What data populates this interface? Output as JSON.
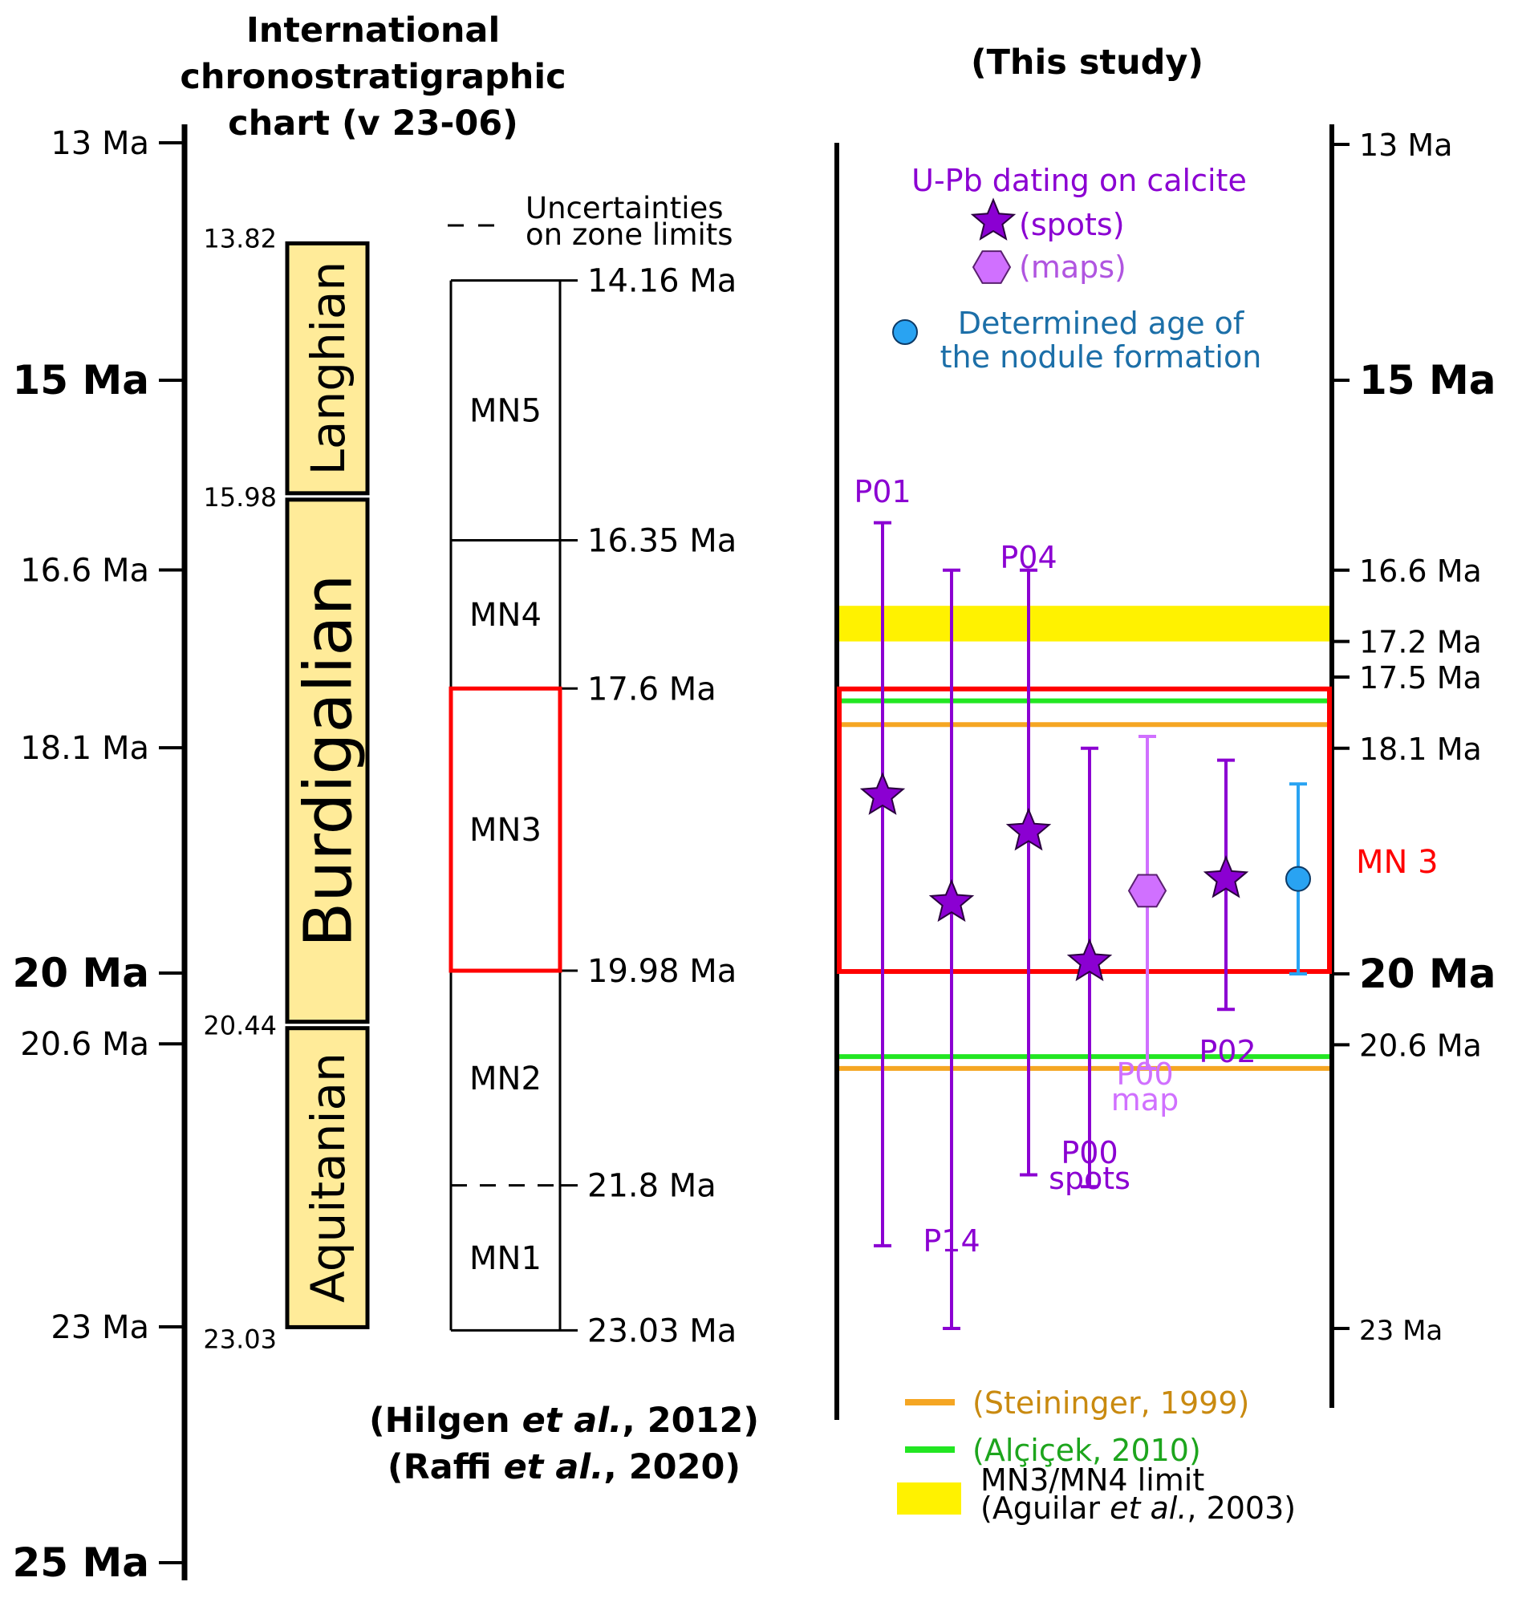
{
  "left_header": {
    "line1": "International",
    "line2": "chronostratigraphic",
    "line3": "chart (v 23-06)"
  },
  "right_header": "(This study)",
  "left_axis_ticks": [
    {
      "label": "13 Ma",
      "value": 13,
      "major": false
    },
    {
      "label": "15 Ma",
      "value": 15,
      "major": true
    },
    {
      "label": "16.6 Ma",
      "value": 16.6,
      "major": false
    },
    {
      "label": "18.1 Ma",
      "value": 18.1,
      "major": false
    },
    {
      "label": "20 Ma",
      "value": 20,
      "major": true
    },
    {
      "label": "20.6 Ma",
      "value": 20.6,
      "major": false
    },
    {
      "label": "23 Ma",
      "value": 23,
      "major": false
    },
    {
      "label": "25 Ma",
      "value": 25,
      "major": true
    }
  ],
  "right_axis_ticks": [
    {
      "label": "13 Ma",
      "value": 13,
      "major": false
    },
    {
      "label": "15 Ma",
      "value": 15,
      "major": true
    },
    {
      "label": "16.6 Ma",
      "value": 16.6,
      "major": false
    },
    {
      "label": "17.2 Ma",
      "value": 17.2,
      "major": false
    },
    {
      "label": "17.5 Ma",
      "value": 17.5,
      "major": false
    },
    {
      "label": "18.1 Ma",
      "value": 18.1,
      "major": false
    },
    {
      "label": "20 Ma",
      "value": 20,
      "major": true
    },
    {
      "label": "20.6 Ma",
      "value": 20.6,
      "major": false
    },
    {
      "label": "23 Ma",
      "value": 23,
      "major": false
    }
  ],
  "stages": [
    {
      "name": "Langhian",
      "top": 13.82,
      "bottom": 15.98,
      "top_label": "13.82",
      "bottom_label": "15.98"
    },
    {
      "name": "Burdigalian",
      "top": 15.98,
      "bottom": 20.44,
      "top_label": "15.98",
      "bottom_label": "20.44"
    },
    {
      "name": "Aquitanian",
      "top": 20.44,
      "bottom": 23.03,
      "top_label": "20.44",
      "bottom_label": "23.03"
    }
  ],
  "uncertainty_legend": {
    "line1": "Uncertainties",
    "line2": "on zone limits"
  },
  "mn_zones": [
    {
      "name": "MN5",
      "top": 14.16,
      "bottom": 16.35
    },
    {
      "name": "MN4",
      "top": 16.35,
      "bottom": 17.6
    },
    {
      "name": "MN3",
      "top": 17.6,
      "bottom": 19.98
    },
    {
      "name": "MN2",
      "top": 19.98,
      "bottom": 21.8
    },
    {
      "name": "MN1",
      "top": 21.8,
      "bottom": 23.03
    }
  ],
  "mn_limits": [
    {
      "label": "14.16 Ma",
      "value": 14.16,
      "dashed": false
    },
    {
      "label": "16.35 Ma",
      "value": 16.35,
      "dashed": false
    },
    {
      "label": "17.6 Ma",
      "value": 17.6,
      "dashed": true
    },
    {
      "label": "19.98 Ma",
      "value": 19.98,
      "dashed": true
    },
    {
      "label": "21.8 Ma",
      "value": 21.8,
      "dashed": true
    },
    {
      "label": "23.03 Ma",
      "value": 23.03,
      "dashed": false
    }
  ],
  "references": {
    "hilgen_pre": "(Hilgen ",
    "hilgen_etal": "et al.",
    "hilgen_post": ", 2012)",
    "raffi_pre": "(Raffi ",
    "raffi_etal": "et al.",
    "raffi_post": ", 2020)"
  },
  "upb_legend": {
    "title": "U-Pb dating on calcite",
    "spots": "(spots)",
    "maps": "(maps)",
    "nodule_line1": "Determined age of",
    "nodule_line2": "the nodule formation"
  },
  "bottom_legend": {
    "steininger": "(Steininger, 1999)",
    "alcicek": "(Alçiçek, 2010)",
    "aguilar_line1": "MN3/MN4 limit",
    "aguilar_pre": "(Aguilar ",
    "aguilar_etal": "et al.",
    "aguilar_post": ", 2003)"
  },
  "mn3_box_label": "MN 3",
  "colors": {
    "spots": "#8B00D2",
    "maps": "#D070FF",
    "nodule": "#29A3F2",
    "nodule_text": "#1C6FA8",
    "steininger": "#F5A623",
    "steininger_text": "#C98A10",
    "alcicek": "#22E622",
    "alcicek_text": "#1DA51D",
    "aguilar_band": "#FFF200",
    "stage_fill": "#FFEB99",
    "mn3_red": "#FF0000"
  },
  "chart_data": {
    "type": "scatter",
    "y_unit": "Ma",
    "series": [
      {
        "label": "P01",
        "kind": "spots",
        "age": 18.5,
        "min": 16.2,
        "max": 22.3
      },
      {
        "label": "P14",
        "kind": "spots",
        "age": 19.4,
        "min": 16.6,
        "max": 23.0
      },
      {
        "label": "P04",
        "kind": "spots",
        "age": 18.8,
        "min": 16.6,
        "max": 21.7
      },
      {
        "label": "P00 spots",
        "kind": "spots",
        "age": 19.9,
        "min": 18.1,
        "max": 21.8
      },
      {
        "label": "P00 map",
        "kind": "maps",
        "age": 19.3,
        "min": 18.0,
        "max": 20.8
      },
      {
        "label": "P02",
        "kind": "spots",
        "age": 19.2,
        "min": 18.2,
        "max": 20.3
      },
      {
        "label": "nodule",
        "kind": "nodule",
        "age": 19.2,
        "min": 18.4,
        "max": 20.0
      }
    ],
    "reference_lines": [
      {
        "source": "Steininger, 1999",
        "values": [
          17.9,
          20.8
        ]
      },
      {
        "source": "Alçiçek, 2010",
        "values": [
          17.7,
          20.7
        ]
      }
    ],
    "reference_band": {
      "source": "Aguilar et al., 2003",
      "from": 16.9,
      "to": 17.2
    },
    "mn3_box": {
      "from": 17.6,
      "to": 19.98
    }
  }
}
